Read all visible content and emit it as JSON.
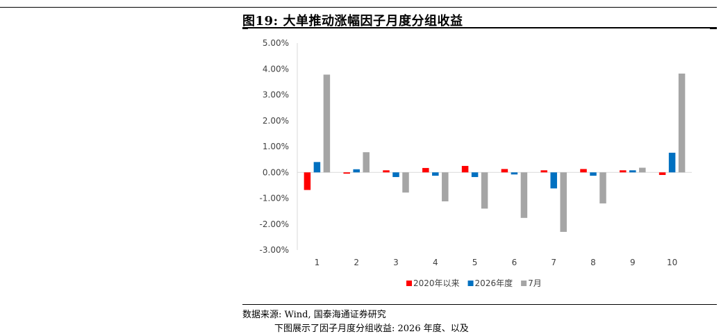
{
  "figure": {
    "title": "图19: 大单推动涨幅因子月度分组收益",
    "source": "数据来源: Wind, 国泰海通证券研究",
    "bottom_text": "下图展示了因子月度分组收益: 2026 年度、以及"
  },
  "chart_data": {
    "type": "bar",
    "categories": [
      "1",
      "2",
      "3",
      "4",
      "5",
      "6",
      "7",
      "8",
      "9",
      "10"
    ],
    "series": [
      {
        "name": "2020年以来",
        "color": "#ff0000",
        "values": [
          -0.68,
          -0.05,
          0.08,
          0.17,
          0.25,
          0.13,
          0.08,
          0.13,
          0.08,
          -0.1
        ]
      },
      {
        "name": "2026年度",
        "color": "#0070c0",
        "values": [
          0.4,
          0.12,
          -0.18,
          -0.13,
          -0.18,
          -0.08,
          -0.62,
          -0.13,
          0.08,
          0.76
        ]
      },
      {
        "name": "7月",
        "color": "#a5a5a5",
        "values": [
          3.78,
          0.78,
          -0.78,
          -1.12,
          -1.4,
          -1.76,
          -2.3,
          -1.2,
          0.18,
          3.82
        ]
      }
    ],
    "ylim": [
      -3.0,
      5.0
    ],
    "yticks": [
      5.0,
      4.0,
      3.0,
      2.0,
      1.0,
      0.0,
      -1.0,
      -2.0,
      -3.0
    ],
    "ytick_labels": [
      "5.00%",
      "4.00%",
      "3.00%",
      "2.00%",
      "1.00%",
      "0.00%",
      "-1.00%",
      "-2.00%",
      "-3.00%"
    ],
    "grid": false,
    "legend_position": "bottom"
  }
}
